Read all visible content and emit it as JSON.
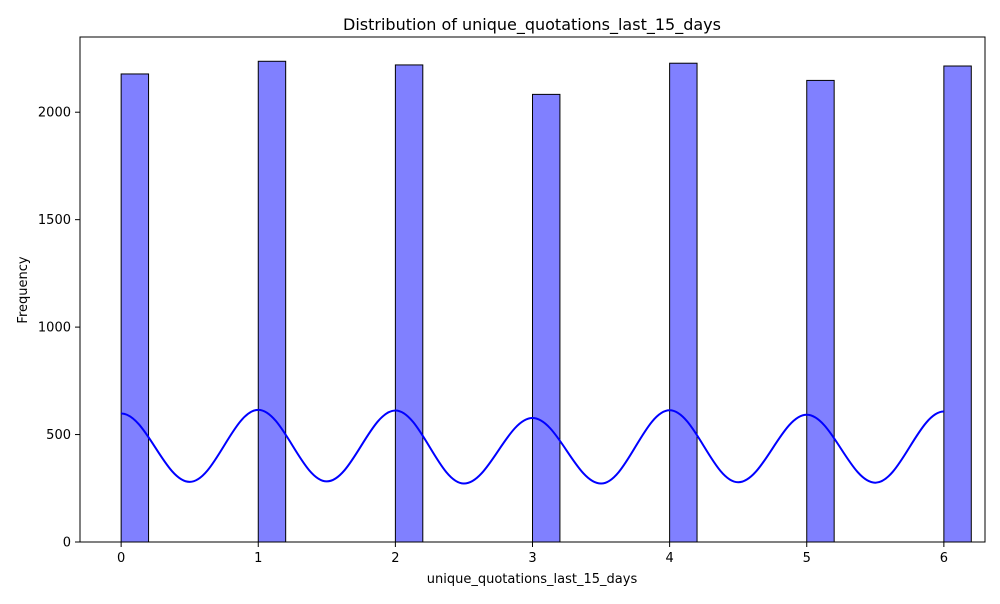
{
  "chart_data": {
    "type": "bar",
    "title": "Distribution of unique_quotations_last_15_days",
    "xlabel": "unique_quotations_last_15_days",
    "ylabel": "Frequency",
    "xlim": [
      -0.3,
      6.3
    ],
    "ylim": [
      0,
      2350
    ],
    "x_ticks": [
      0,
      1,
      2,
      3,
      4,
      5,
      6
    ],
    "y_ticks": [
      0,
      500,
      1000,
      1500,
      2000
    ],
    "grid": false,
    "bin_width": 0.2,
    "bins": [
      {
        "x0": 0,
        "x1": 0.2,
        "value": 2178
      },
      {
        "x0": 1,
        "x1": 1.2,
        "value": 2237
      },
      {
        "x0": 2,
        "x1": 2.2,
        "value": 2220
      },
      {
        "x0": 3,
        "x1": 3.2,
        "value": 2083
      },
      {
        "x0": 4,
        "x1": 4.2,
        "value": 2228
      },
      {
        "x0": 5,
        "x1": 5.2,
        "value": 2148
      },
      {
        "x0": 6,
        "x1": 6.2,
        "value": 2215
      }
    ],
    "kde": {
      "x": [
        0,
        0.5,
        1,
        1.5,
        2,
        2.5,
        3,
        3.5,
        4,
        4.5,
        5,
        5.5,
        6
      ],
      "y": [
        598,
        280,
        615,
        282,
        612,
        272,
        577,
        272,
        613,
        278,
        592,
        276,
        607
      ]
    },
    "colors": {
      "bar_fill": "#8080ff",
      "bar_edge": "#000000",
      "kde_line": "#0000ff",
      "axes": "#000000"
    }
  }
}
